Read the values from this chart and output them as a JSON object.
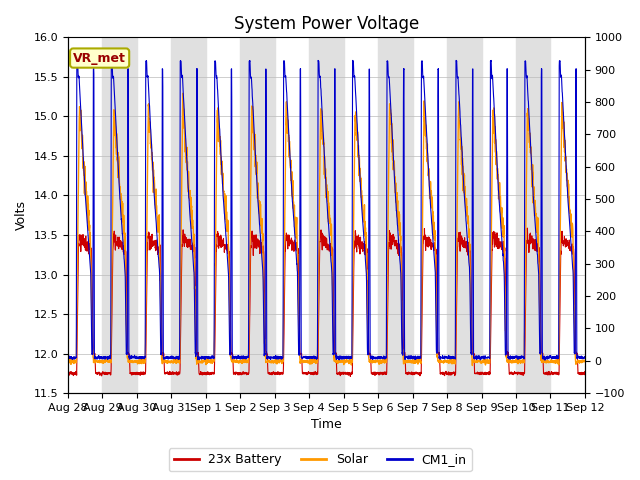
{
  "title": "System Power Voltage",
  "xlabel": "Time",
  "ylabel_left": "Volts",
  "ylim_left": [
    11.5,
    16.0
  ],
  "ylim_right": [
    -100,
    1000
  ],
  "yticks_left": [
    11.5,
    12.0,
    12.5,
    13.0,
    13.5,
    14.0,
    14.5,
    15.0,
    15.5,
    16.0
  ],
  "yticks_right": [
    -100,
    0,
    100,
    200,
    300,
    400,
    500,
    600,
    700,
    800,
    900,
    1000
  ],
  "day_labels": [
    "Aug 28",
    "Aug 29",
    "Aug 30",
    "Aug 31",
    "Sep 1",
    "Sep 2",
    "Sep 3",
    "Sep 4",
    "Sep 5",
    "Sep 6",
    "Sep 7",
    "Sep 8",
    "Sep 9",
    "Sep 10",
    "Sep 11",
    "Sep 12"
  ],
  "annotation_text": "VR_met",
  "annotation_bg": "#ffffcc",
  "annotation_border": "#aaaa00",
  "annotation_text_color": "#990000",
  "line_battery": "#cc0000",
  "line_solar": "#ff9900",
  "line_cm1": "#0000cc",
  "legend_labels": [
    "23x Battery",
    "Solar",
    "CM1_in"
  ],
  "background_band_color": "#e0e0e0",
  "grid_color": "#bbbbbb",
  "title_fontsize": 12,
  "axis_label_fontsize": 9,
  "tick_fontsize": 8,
  "legend_fontsize": 9
}
